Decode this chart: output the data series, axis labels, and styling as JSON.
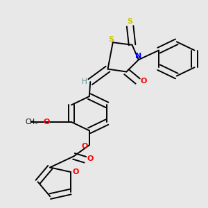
{
  "bg_color": "#e8e8e8",
  "atom_colors": {
    "C": "#000000",
    "H": "#4a9090",
    "N": "#0000ff",
    "O": "#ff0000",
    "S": "#c8c800"
  },
  "figsize": [
    3.0,
    3.0
  ],
  "dpi": 100
}
